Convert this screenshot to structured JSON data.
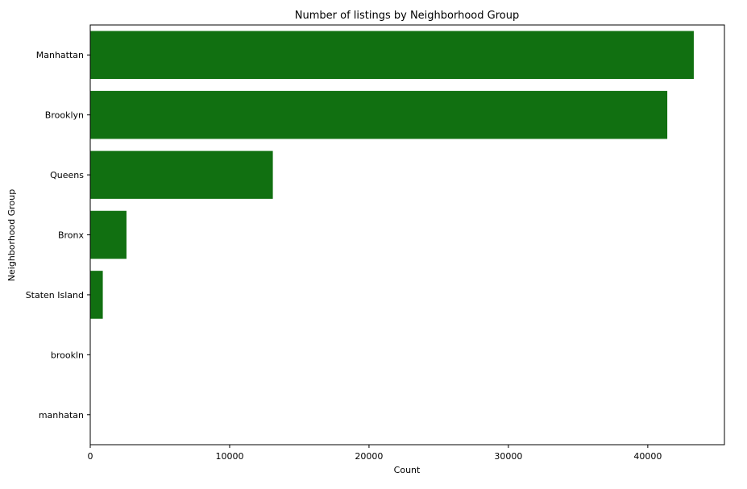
{
  "chart_data": {
    "type": "bar",
    "orientation": "horizontal",
    "title": "Number of listings by Neighborhood Group",
    "xlabel": "Count",
    "ylabel": "Neighborhood Group",
    "categories": [
      "Manhattan",
      "Brooklyn",
      "Queens",
      "Bronx",
      "Staten Island",
      "brookln",
      "manhatan"
    ],
    "values": [
      43300,
      41400,
      13100,
      2600,
      900,
      1,
      1
    ],
    "xlim": [
      0,
      45500
    ],
    "xticks": [
      0,
      10000,
      20000,
      30000,
      40000
    ],
    "grid": false,
    "bar_color": "#117011"
  }
}
